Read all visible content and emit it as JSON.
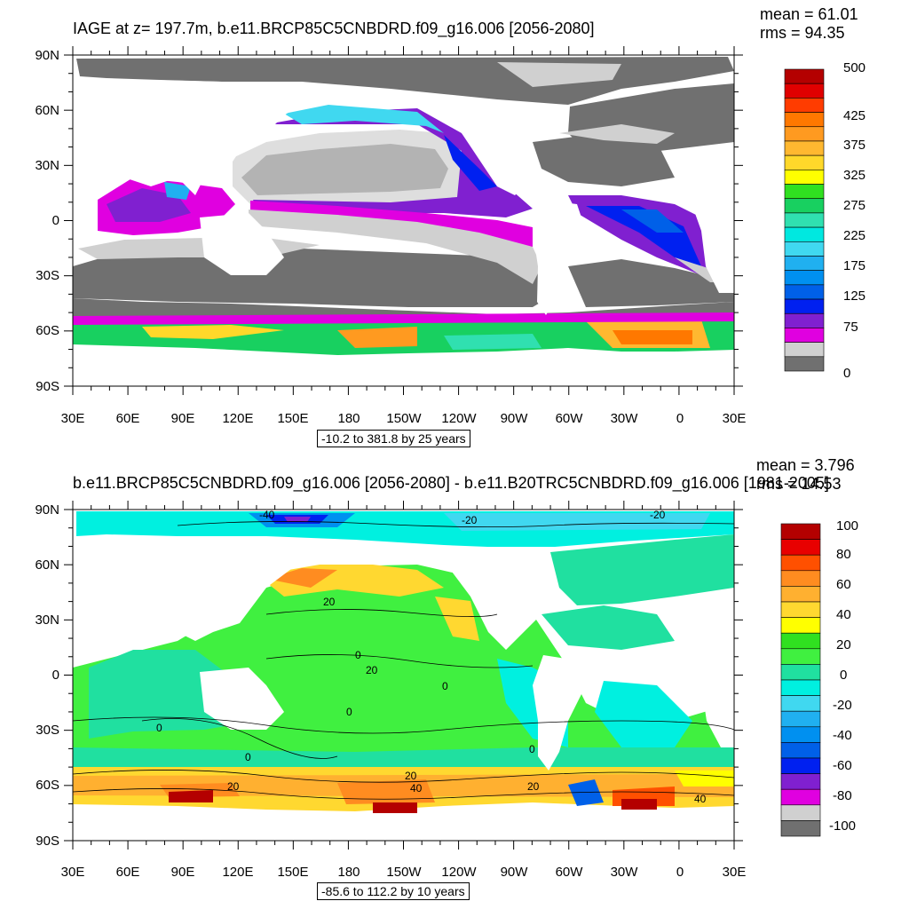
{
  "panels": [
    {
      "title": "IAGE at z= 197.7m, b.e11.BRCP85C5CNBDRD.f09_g16.006 [2056-2080]",
      "mean": "mean = 61.01",
      "rms": "rms = 94.35",
      "range_label": "-10.2 to 381.8 by 25 years",
      "lat_labels": [
        "90N",
        "60N",
        "30N",
        "0",
        "30S",
        "60S",
        "90S"
      ],
      "lon_labels": [
        "30E",
        "60E",
        "90E",
        "120E",
        "150E",
        "180",
        "150W",
        "120W",
        "90W",
        "60W",
        "30W",
        "0",
        "30E"
      ],
      "colorbar_labels": [
        "500",
        "425",
        "375",
        "325",
        "275",
        "225",
        "175",
        "125",
        "75",
        "0"
      ],
      "colorbar_colors": [
        "#b40000",
        "#e00000",
        "#ff3c00",
        "#ff7800",
        "#ff9a20",
        "#ffb830",
        "#ffd82a",
        "#ffff00",
        "#30e020",
        "#18d060",
        "#30e0b0",
        "#00e8e0",
        "#40d8f0",
        "#20b0f0",
        "#0090f0",
        "#0060e8",
        "#0020f0",
        "#8020d0",
        "#e000e0",
        "#d0d0d0",
        "#707070"
      ],
      "contour_labels": []
    },
    {
      "title": "b.e11.BRCP85C5CNBDRD.f09_g16.006 [2056-2080] - b.e11.B20TRC5CNBDRD.f09_g16.006 [1981-2005]",
      "mean": "mean = 3.796",
      "rms": "rms = 14.53",
      "range_label": "-85.6 to 112.2 by 10 years",
      "lat_labels": [
        "90N",
        "60N",
        "30N",
        "0",
        "30S",
        "60S",
        "90S"
      ],
      "lon_labels": [
        "30E",
        "60E",
        "90E",
        "120E",
        "150E",
        "180",
        "150W",
        "120W",
        "90W",
        "60W",
        "30W",
        "0",
        "30E"
      ],
      "colorbar_labels": [
        "100",
        "80",
        "60",
        "40",
        "20",
        "0",
        "-20",
        "-40",
        "-60",
        "-80",
        "-100"
      ],
      "colorbar_colors": [
        "#b40000",
        "#e80000",
        "#ff5000",
        "#ff8c20",
        "#ffb030",
        "#ffd830",
        "#ffff00",
        "#30e020",
        "#40f040",
        "#20e0a0",
        "#00f0e0",
        "#40d8f0",
        "#20b0f0",
        "#0090f0",
        "#0060e8",
        "#0020f0",
        "#8020d0",
        "#e000e0",
        "#d0d0d0",
        "#707070"
      ],
      "contour_labels": [
        "-40",
        "-20",
        "-20",
        "20",
        "0",
        "20",
        "0",
        "0",
        "0",
        "0",
        "0",
        "20",
        "20",
        "20",
        "40",
        "40"
      ]
    }
  ]
}
